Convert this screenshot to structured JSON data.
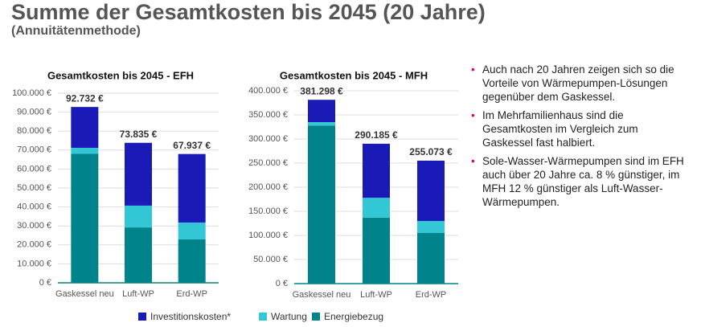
{
  "header": {
    "title": "Summe der Gesamtkosten bis 2045 (20 Jahre)",
    "subtitle": "(Annuitätenmethode)"
  },
  "bullets": [
    "Auch nach 20 Jahren zeigen sich so die Vorteile von Wärmepumpen-Lösungen gegenüber dem Gaskessel.",
    "Im Mehrfamilienhaus sind die Gesamtkosten im Vergleich zum Gaskessel fast halbiert.",
    "Sole-Wasser-Wärmepumpen sind im EFH auch über 20 Jahre ca. 8 % günstiger, im MFH 12 % günstiger als Luft-Wasser-Wärmepumpen."
  ],
  "chart_data": [
    {
      "type": "stacked_bar",
      "title": "Gesamtkosten bis 2045 - EFH",
      "categories": [
        "Gaskessel neu",
        "Luft-WP",
        "Erd-WP"
      ],
      "series": [
        {
          "name": "Energiebezug",
          "color": "#00838a",
          "values": [
            68000,
            29200,
            22900
          ]
        },
        {
          "name": "Wartung",
          "color": "#33c7d6",
          "values": [
            3200,
            11500,
            8900
          ]
        },
        {
          "name": "Investitionskosten*",
          "color": "#1a1ab8",
          "values": [
            21532,
            33135,
            36137
          ]
        }
      ],
      "totals": {
        "values": [
          92732,
          73835,
          67937
        ],
        "value_labels": [
          "92.732 €",
          "73.835 €",
          "67.937 €"
        ]
      },
      "ylim": [
        0,
        100000
      ],
      "yticks": [
        {
          "value": 0,
          "label": "0 €"
        },
        {
          "value": 10000,
          "label": "10.000 €"
        },
        {
          "value": 20000,
          "label": "20.000 €"
        },
        {
          "value": 30000,
          "label": "30.000 €"
        },
        {
          "value": 40000,
          "label": "40.000 €"
        },
        {
          "value": 50000,
          "label": "50.000 €"
        },
        {
          "value": 60000,
          "label": "60.000 €"
        },
        {
          "value": 70000,
          "label": "70.000 €"
        },
        {
          "value": 80000,
          "label": "80.000 €"
        },
        {
          "value": 90000,
          "label": "90.000 €"
        },
        {
          "value": 100000,
          "label": "100.000 €"
        }
      ],
      "grid": true
    },
    {
      "type": "stacked_bar",
      "title": "Gesamtkosten bis 2045 - MFH",
      "categories": [
        "Gaskessel neu",
        "Luft-WP",
        "Erd-WP"
      ],
      "series": [
        {
          "name": "Energiebezug",
          "color": "#00838a",
          "values": [
            328000,
            137000,
            105000
          ]
        },
        {
          "name": "Wartung",
          "color": "#33c7d6",
          "values": [
            7000,
            41000,
            25000
          ]
        },
        {
          "name": "Investitionskosten*",
          "color": "#1a1ab8",
          "values": [
            46298,
            112185,
            125073
          ]
        }
      ],
      "totals": {
        "values": [
          381298,
          290185,
          255073
        ],
        "value_labels": [
          "381.298 €",
          "290.185 €",
          "255.073 €"
        ]
      },
      "ylim": [
        0,
        400000
      ],
      "yticks": [
        {
          "value": 0,
          "label": "0 €"
        },
        {
          "value": 50000,
          "label": "50.000 €"
        },
        {
          "value": 100000,
          "label": "100.000 €"
        },
        {
          "value": 150000,
          "label": "150.000 €"
        },
        {
          "value": 200000,
          "label": "200.000 €"
        },
        {
          "value": 250000,
          "label": "250.000 €"
        },
        {
          "value": 300000,
          "label": "300.000 €"
        },
        {
          "value": 350000,
          "label": "350.000 €"
        },
        {
          "value": 400000,
          "label": "400.000 €"
        }
      ],
      "grid": true
    }
  ]
}
